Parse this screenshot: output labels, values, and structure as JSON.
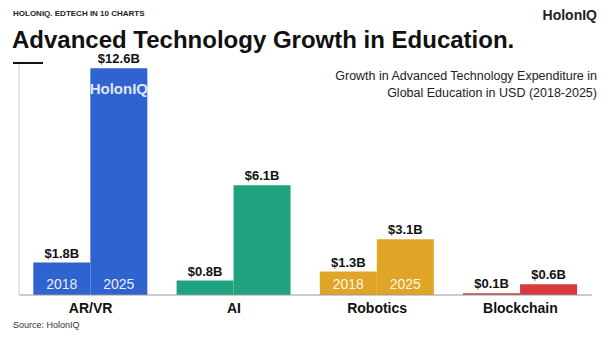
{
  "chart_data": {
    "type": "bar",
    "header": "HOLONIQ. EDTECH IN 10 CHARTS",
    "logo": "HolonIQ",
    "title": "Advanced Technology Growth in Education.",
    "subtitle": "Growth in Advanced Technology Expenditure in Global Education in USD (2018-2025)",
    "source": "Source: HolonIQ",
    "watermark": "HolonIQ",
    "categories": [
      "AR/VR",
      "AI",
      "Robotics",
      "Blockchain"
    ],
    "colors": [
      "#2f63d0",
      "#1fa37f",
      "#e0a526",
      "#d63a3a"
    ],
    "series": [
      {
        "name": "2018",
        "values": [
          1.8,
          0.8,
          1.3,
          0.1
        ],
        "value_labels": [
          "$1.8B",
          "$0.8B",
          "$1.3B",
          "$0.1B"
        ]
      },
      {
        "name": "2025",
        "values": [
          12.6,
          6.1,
          3.1,
          0.6
        ],
        "value_labels": [
          "$12.6B",
          "$6.1B",
          "$3.1B",
          "$0.6B"
        ]
      }
    ],
    "ylim": [
      0,
      13
    ],
    "data_labels": true,
    "tick_labels": "x",
    "grid": false
  }
}
